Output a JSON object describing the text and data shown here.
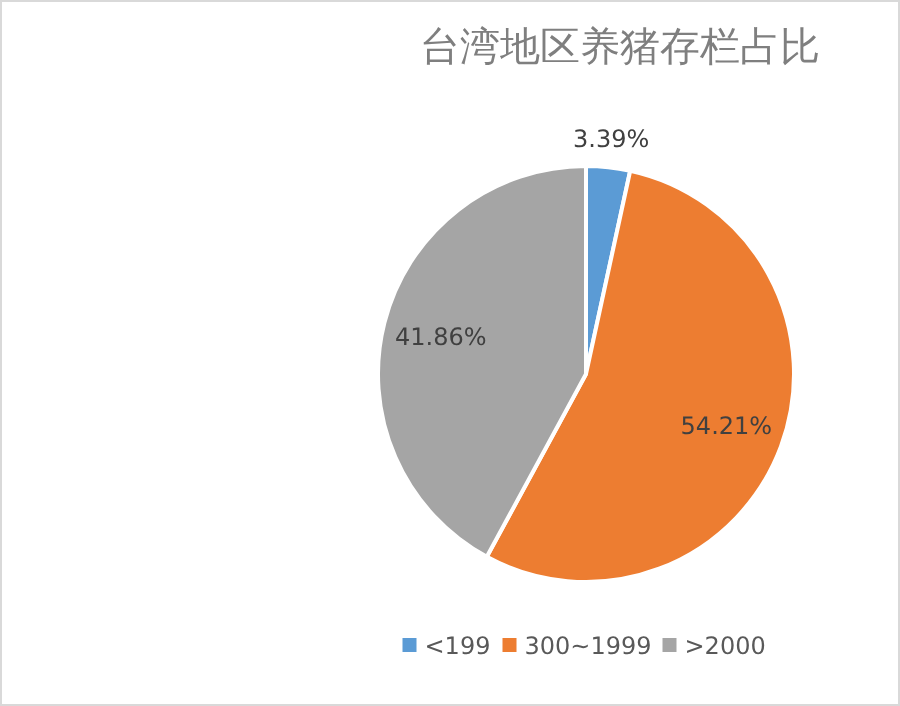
{
  "chart_data": {
    "type": "pie",
    "title": "台湾地区养猪存栏占比",
    "categories": [
      "<199",
      "300~1999",
      ">2000"
    ],
    "values": [
      3.39,
      54.21,
      41.86
    ],
    "colors": [
      "#5b9bd5",
      "#ed7d31",
      "#a5a5a5"
    ],
    "value_labels": [
      "3.39%",
      "54.21%",
      "41.86%"
    ],
    "legend": "bottom"
  }
}
